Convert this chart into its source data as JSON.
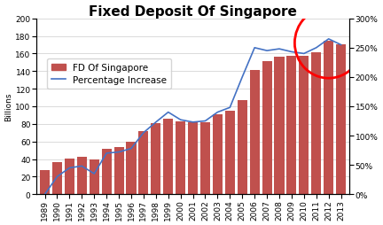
{
  "title": "Fixed Deposit Of Singapore",
  "ylabel_left": "Billions",
  "years": [
    1989,
    1990,
    1991,
    1992,
    1993,
    1994,
    1995,
    1996,
    1997,
    1998,
    1999,
    2000,
    2001,
    2002,
    2003,
    2004,
    2005,
    2006,
    2007,
    2008,
    2009,
    2010,
    2011,
    2012,
    2013
  ],
  "fd_values": [
    27,
    36,
    41,
    43,
    40,
    52,
    54,
    60,
    72,
    81,
    86,
    83,
    82,
    82,
    91,
    95,
    107,
    141,
    151,
    156,
    157,
    157,
    161,
    175,
    170
  ],
  "pct_values": [
    0,
    30,
    45,
    48,
    35,
    70,
    72,
    78,
    105,
    123,
    140,
    127,
    123,
    125,
    140,
    148,
    200,
    250,
    245,
    248,
    243,
    240,
    250,
    265,
    255
  ],
  "bar_color": "#C0504D",
  "line_color": "#4472C4",
  "ylim_left": [
    0,
    200
  ],
  "ylim_right": [
    0,
    300
  ],
  "yticks_left": [
    0,
    20,
    40,
    60,
    80,
    100,
    120,
    140,
    160,
    180,
    200
  ],
  "yticks_right_vals": [
    0,
    50,
    100,
    150,
    200,
    250,
    300
  ],
  "yticks_right_labels": [
    "0%",
    "50%",
    "100%",
    "150%",
    "200%",
    "250%",
    "300%"
  ],
  "title_fontsize": 11,
  "tick_fontsize": 6.5,
  "legend_fontsize": 7.5,
  "bar_label": "FD Of Singapore",
  "line_label": "Percentage Increase",
  "background_color": "#FFFFFF",
  "grid_color": "#CCCCCC"
}
